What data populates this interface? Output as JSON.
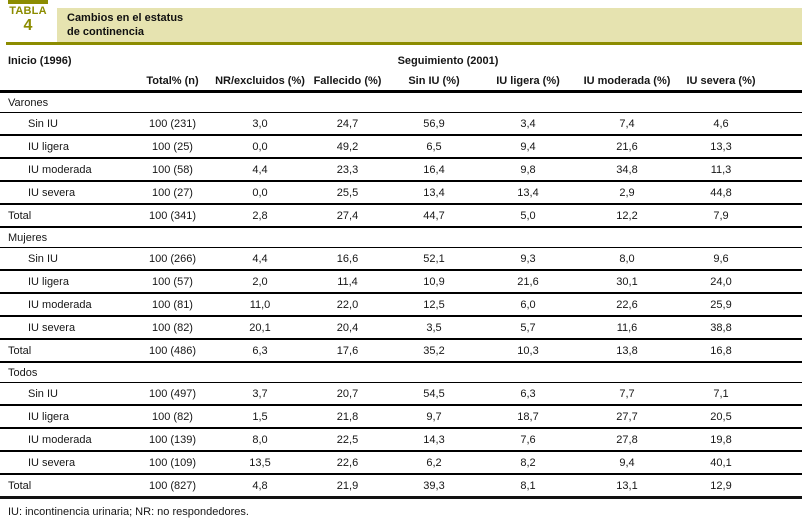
{
  "colors": {
    "olive": "#8c8c00",
    "beige": "#e6e3b0"
  },
  "title_block": {
    "tabla_label": "TABLA",
    "tabla_number": "4",
    "title_line1": "Cambios en el estatus",
    "title_line2": "de continencia"
  },
  "header": {
    "inicio": "Inicio (1996)",
    "seguimiento": "Seguimiento (2001)",
    "columns": [
      "Total% (n)",
      "NR/excluidos (%)",
      "Fallecido (%)",
      "Sin IU (%)",
      "IU ligera (%)",
      "IU moderada (%)",
      "IU severa (%)"
    ]
  },
  "sections": [
    {
      "name": "Varones",
      "rows": [
        {
          "label": "Sin IU",
          "indent": true,
          "values": [
            "100 (231)",
            "3,0",
            "24,7",
            "56,9",
            "3,4",
            "7,4",
            "4,6"
          ]
        },
        {
          "label": "IU ligera",
          "indent": true,
          "values": [
            "100 (25)",
            "0,0",
            "49,2",
            "6,5",
            "9,4",
            "21,6",
            "13,3"
          ]
        },
        {
          "label": "IU moderada",
          "indent": true,
          "values": [
            "100 (58)",
            "4,4",
            "23,3",
            "16,4",
            "9,8",
            "34,8",
            "11,3"
          ]
        },
        {
          "label": "IU severa",
          "indent": true,
          "values": [
            "100 (27)",
            "0,0",
            "25,5",
            "13,4",
            "13,4",
            "2,9",
            "44,8"
          ]
        },
        {
          "label": "Total",
          "indent": false,
          "values": [
            "100 (341)",
            "2,8",
            "27,4",
            "44,7",
            "5,0",
            "12,2",
            "7,9"
          ]
        }
      ]
    },
    {
      "name": "Mujeres",
      "rows": [
        {
          "label": "Sin IU",
          "indent": true,
          "values": [
            "100 (266)",
            "4,4",
            "16,6",
            "52,1",
            "9,3",
            "8,0",
            "9,6"
          ]
        },
        {
          "label": "IU ligera",
          "indent": true,
          "values": [
            "100 (57)",
            "2,0",
            "11,4",
            "10,9",
            "21,6",
            "30,1",
            "24,0"
          ]
        },
        {
          "label": "IU moderada",
          "indent": true,
          "values": [
            "100 (81)",
            "11,0",
            "22,0",
            "12,5",
            "6,0",
            "22,6",
            "25,9"
          ]
        },
        {
          "label": "IU severa",
          "indent": true,
          "values": [
            "100 (82)",
            "20,1",
            "20,4",
            "3,5",
            "5,7",
            "11,6",
            "38,8"
          ]
        },
        {
          "label": "Total",
          "indent": false,
          "values": [
            "100 (486)",
            "6,3",
            "17,6",
            "35,2",
            "10,3",
            "13,8",
            "16,8"
          ]
        }
      ]
    },
    {
      "name": "Todos",
      "rows": [
        {
          "label": "Sin IU",
          "indent": true,
          "values": [
            "100 (497)",
            "3,7",
            "20,7",
            "54,5",
            "6,3",
            "7,7",
            "7,1"
          ]
        },
        {
          "label": "IU ligera",
          "indent": true,
          "values": [
            "100 (82)",
            "1,5",
            "21,8",
            "9,7",
            "18,7",
            "27,7",
            "20,5"
          ]
        },
        {
          "label": "IU moderada",
          "indent": true,
          "values": [
            "100 (139)",
            "8,0",
            "22,5",
            "14,3",
            "7,6",
            "27,8",
            "19,8"
          ]
        },
        {
          "label": "IU severa",
          "indent": true,
          "values": [
            "100 (109)",
            "13,5",
            "22,6",
            "6,2",
            "8,2",
            "9,4",
            "40,1"
          ]
        },
        {
          "label": "Total",
          "indent": false,
          "values": [
            "100 (827)",
            "4,8",
            "21,9",
            "39,3",
            "8,1",
            "13,1",
            "12,9"
          ]
        }
      ]
    }
  ],
  "footnote": "IU: incontinencia urinaria; NR: no respondedores."
}
